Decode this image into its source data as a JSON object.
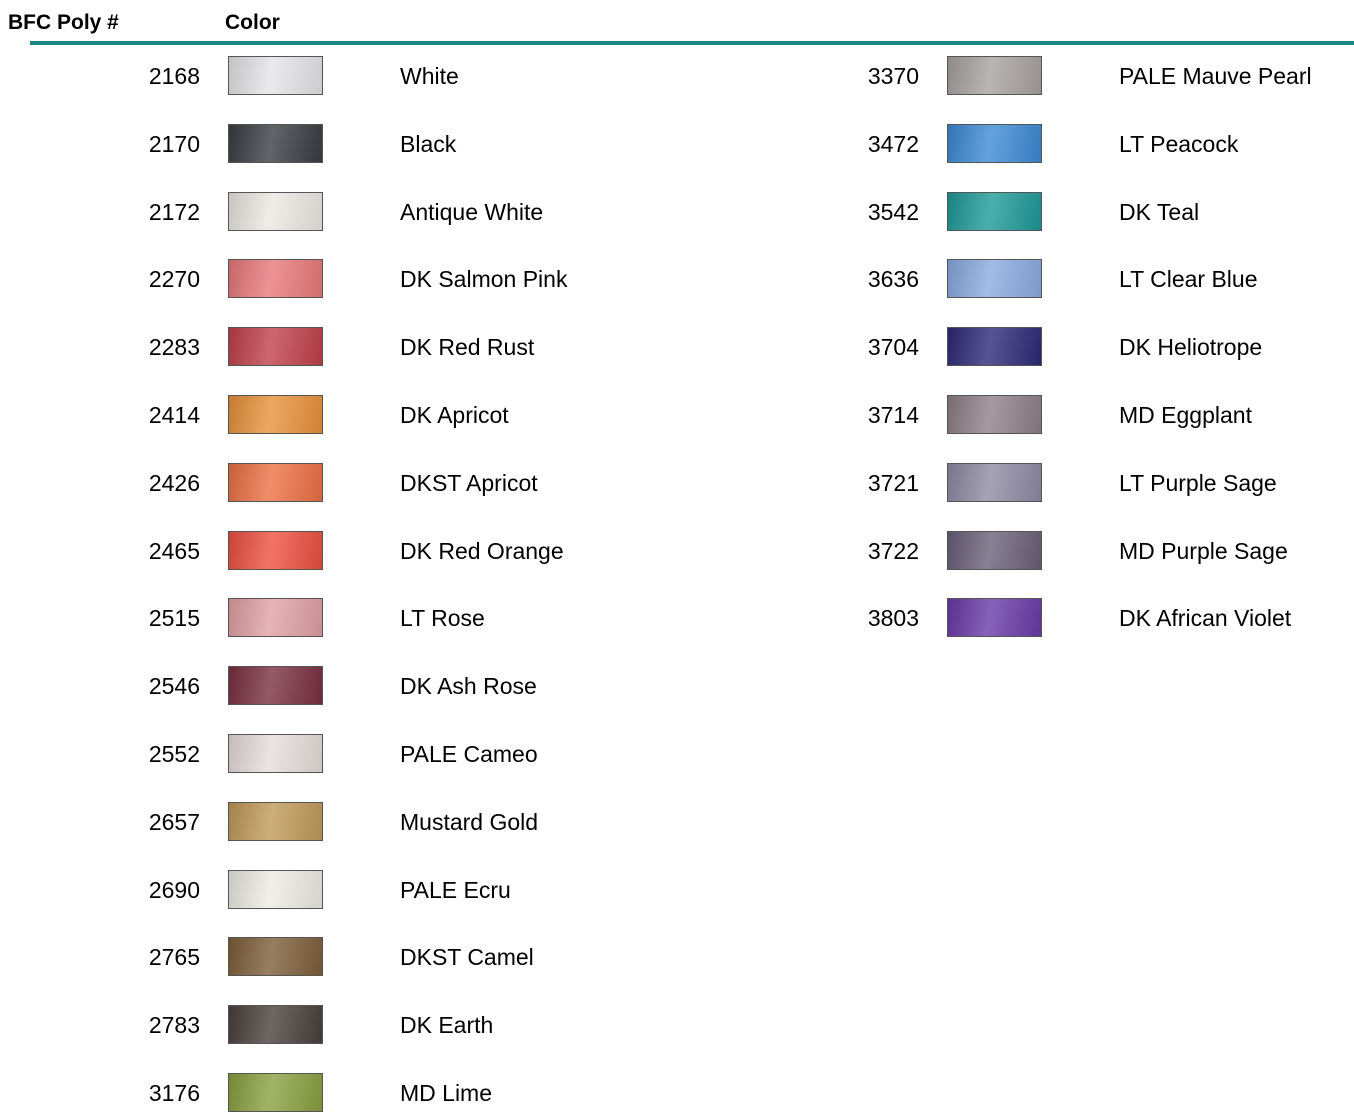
{
  "header": {
    "columns": [
      "BFC Poly #",
      "Color"
    ]
  },
  "columns": [
    {
      "rows": [
        {
          "number": "2168",
          "name": "White",
          "color": "#e4e4e6"
        },
        {
          "number": "2170",
          "name": "Black",
          "color": "#3a3d42"
        },
        {
          "number": "2172",
          "name": "Antique White",
          "color": "#ebe8e3"
        },
        {
          "number": "2270",
          "name": "DK Salmon Pink",
          "color": "#e8787a"
        },
        {
          "number": "2283",
          "name": "DK Red Rust",
          "color": "#c0404a"
        },
        {
          "number": "2414",
          "name": "DK Apricot",
          "color": "#e8913a"
        },
        {
          "number": "2426",
          "name": "DKST Apricot",
          "color": "#ec7044"
        },
        {
          "number": "2465",
          "name": "DK Red Orange",
          "color": "#ec5040"
        },
        {
          "number": "2515",
          "name": "LT Rose",
          "color": "#e0a0a4"
        },
        {
          "number": "2546",
          "name": "DK Ash Rose",
          "color": "#7a3040"
        },
        {
          "number": "2552",
          "name": "PALE Cameo",
          "color": "#e6dcda"
        },
        {
          "number": "2657",
          "name": "Mustard Gold",
          "color": "#c09a58"
        },
        {
          "number": "2690",
          "name": "PALE Ecru",
          "color": "#ecebe4"
        },
        {
          "number": "2765",
          "name": "DKST Camel",
          "color": "#7e5e3a"
        },
        {
          "number": "2783",
          "name": "DK Earth",
          "color": "#4a403c"
        },
        {
          "number": "3176",
          "name": "MD Lime",
          "color": "#8aa040"
        }
      ]
    },
    {
      "rows": [
        {
          "number": "3370",
          "name": "PALE Mauve Pearl",
          "color": "#a8a2a2"
        },
        {
          "number": "3472",
          "name": "LT Peacock",
          "color": "#3c8ad4"
        },
        {
          "number": "3542",
          "name": "DK Teal",
          "color": "#1e9a98"
        },
        {
          "number": "3636",
          "name": "LT Clear Blue",
          "color": "#8aaae0"
        },
        {
          "number": "3704",
          "name": "DK Heliotrope",
          "color": "#2e2a78"
        },
        {
          "number": "3714",
          "name": "MD Eggplant",
          "color": "#8e8088"
        },
        {
          "number": "3721",
          "name": "LT Purple Sage",
          "color": "#8e8aa4"
        },
        {
          "number": "3722",
          "name": "MD Purple Sage",
          "color": "#6a6078"
        },
        {
          "number": "3803",
          "name": "DK African Violet",
          "color": "#6a3aa8"
        }
      ]
    }
  ]
}
